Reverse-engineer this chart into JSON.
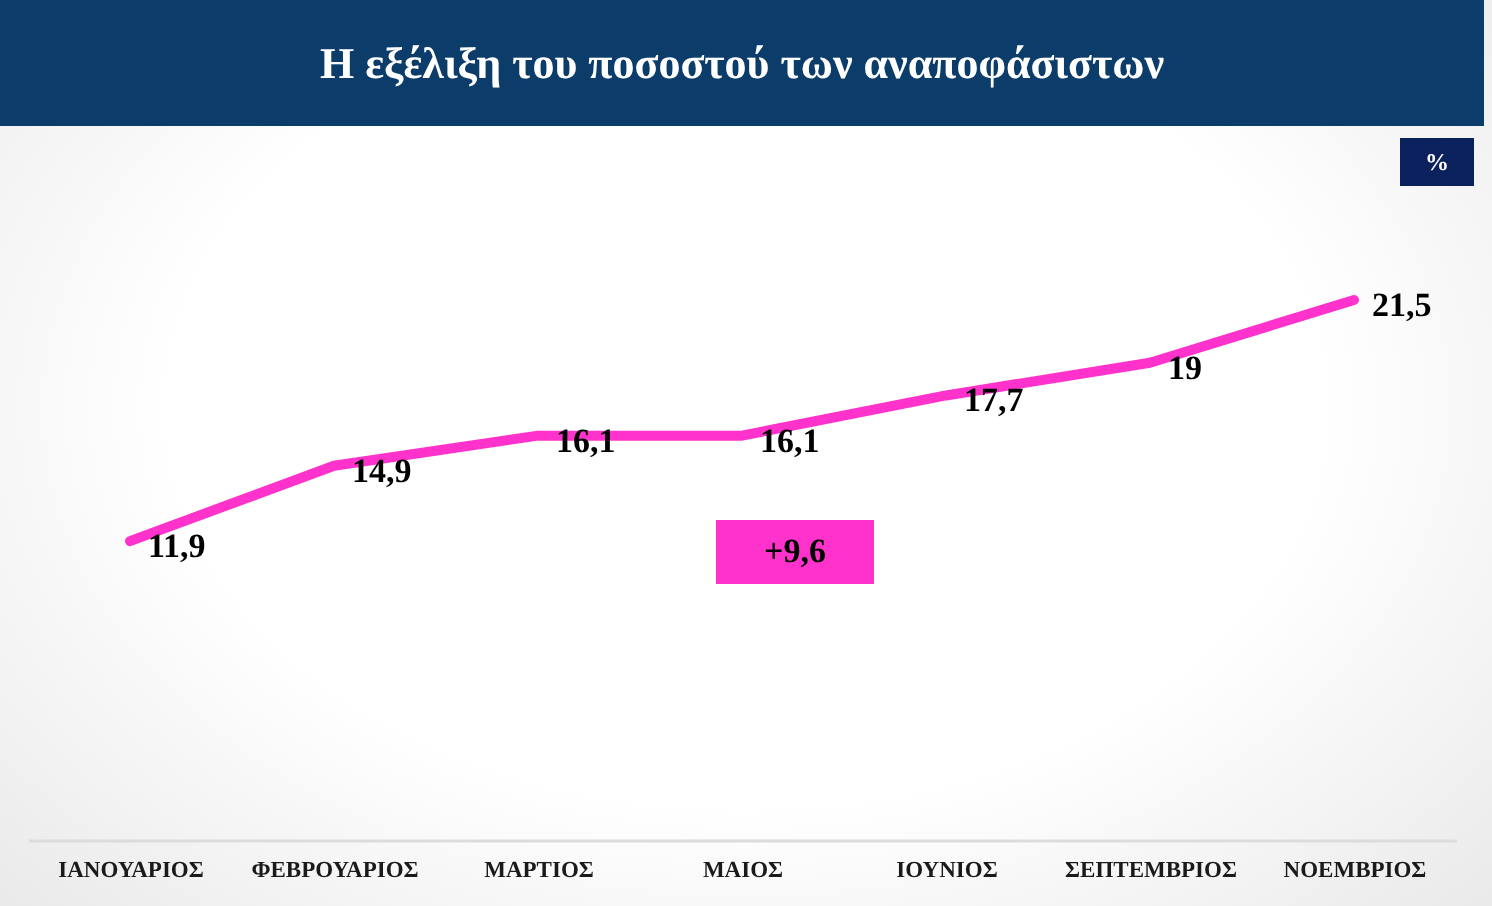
{
  "chart_data": {
    "type": "line",
    "title": "Η εξέλιξη του ποσοστού των αναποφάσιστων",
    "categories": [
      "ΙΑΝΟΥΑΡΙΟΣ",
      "ΦΕΒΡΟΥΑΡΙΟΣ",
      "ΜΑΡΤΙΟΣ",
      "ΜΑΙΟΣ",
      "ΙΟΥΝΙΟΣ",
      "ΣΕΠΤΕΜΒΡΙΟΣ",
      "ΝΟΕΜΒΡΙΟΣ"
    ],
    "values": [
      11.9,
      14.9,
      16.1,
      16.1,
      17.7,
      19,
      21.5
    ],
    "value_labels": [
      "11,9",
      "14,9",
      "16,1",
      "16,1",
      "17,7",
      "19",
      "21,5"
    ],
    "color": "#ff33cc",
    "line_style": "solid",
    "annotations": [
      "%",
      "+9,6"
    ]
  }
}
